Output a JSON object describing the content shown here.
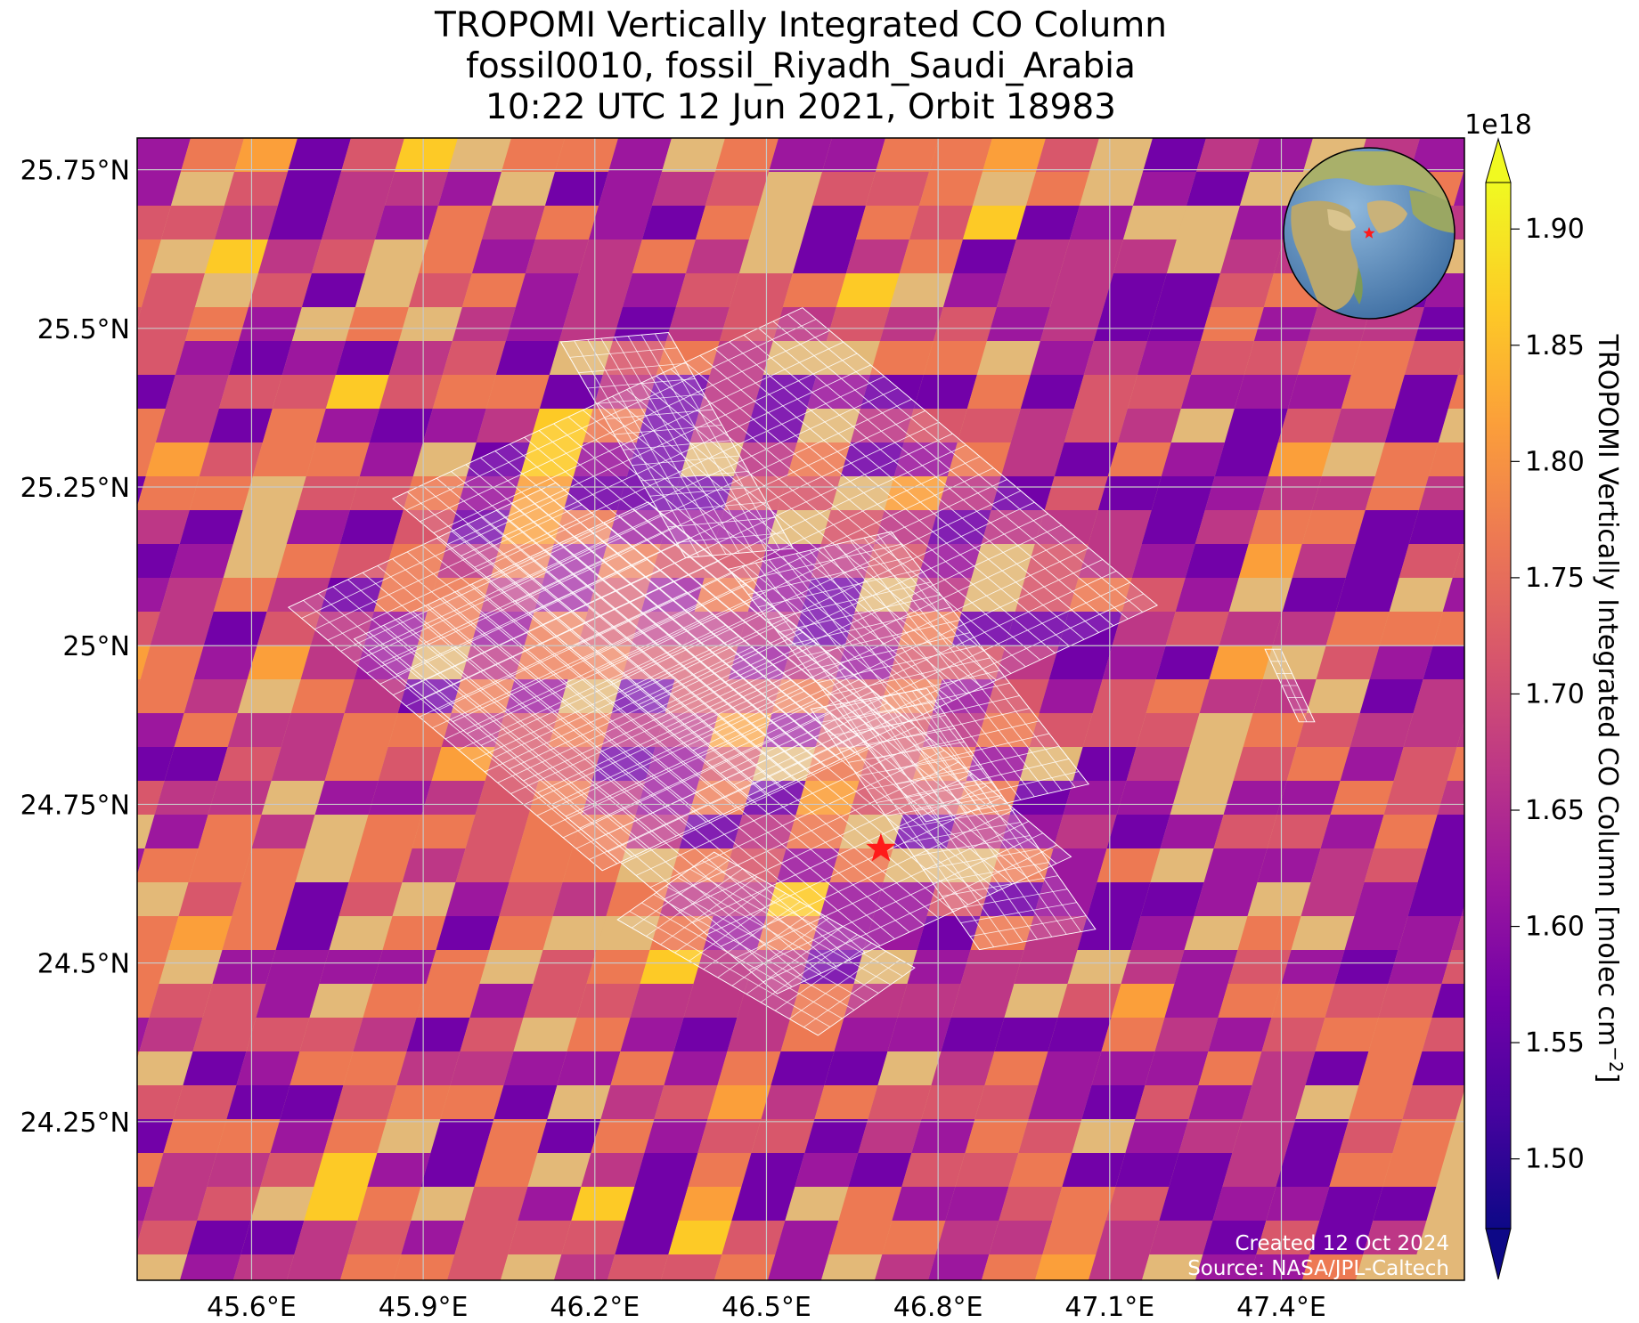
{
  "title": {
    "line1": "TROPOMI Vertically Integrated CO Column",
    "line2": "fossil0010, fossil_Riyadh_Saudi_Arabia",
    "line3": "10:22 UTC 12 Jun 2021, Orbit 18983"
  },
  "map": {
    "extent": {
      "lon_min": 45.4,
      "lon_max": 47.72,
      "lat_min": 24.0,
      "lat_max": 25.8
    },
    "lon_ticks": [
      "45.6°E",
      "45.9°E",
      "46.2°E",
      "46.5°E",
      "46.8°E",
      "47.1°E",
      "47.4°E"
    ],
    "lat_ticks": [
      "25.75°N",
      "25.5°N",
      "25.25°N",
      "25°N",
      "24.75°N",
      "24.5°N",
      "24.25°N"
    ],
    "target": {
      "name": "fossil_Riyadh_Saudi_Arabia",
      "lon": 46.7,
      "lat": 24.68,
      "marker_color": "#ff1a1a"
    },
    "credit_line1": "Created 12 Oct 2024",
    "credit_line2": "Source: NASA/JPL-Caltech",
    "grid": true,
    "inset": "globe"
  },
  "colorbar": {
    "label": "TROPOMI Vertically Integrated CO Column [molec cm",
    "label_sup": "−2",
    "label_end": "]",
    "offset": "1e18",
    "ticks": [
      "1.50",
      "1.55",
      "1.60",
      "1.65",
      "1.70",
      "1.75",
      "1.80",
      "1.85",
      "1.90"
    ],
    "range": [
      1.47,
      1.92
    ],
    "colormap": "plasma",
    "extend": "both"
  },
  "colors": {
    "plasma": [
      "#0d0887",
      "#46039f",
      "#7201a8",
      "#9c179e",
      "#bd3786",
      "#d8576b",
      "#ed7953",
      "#fb9f3a",
      "#fdca26",
      "#f0f921"
    ],
    "desert": "#e3b878",
    "ocean": "#5b8fc0"
  }
}
